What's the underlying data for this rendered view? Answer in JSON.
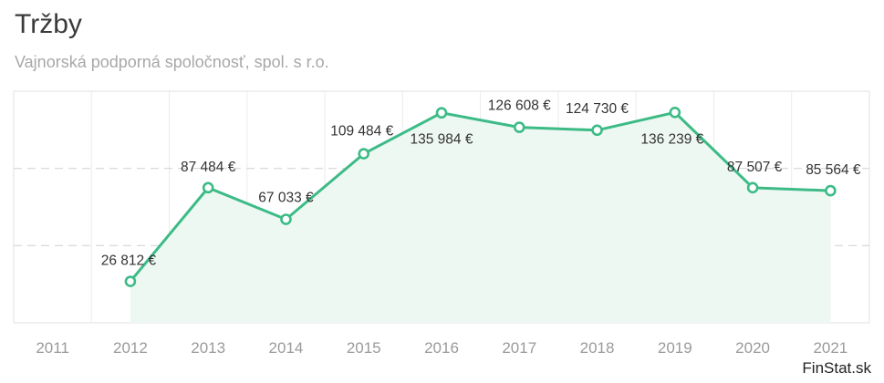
{
  "header": {
    "title": "Tržby",
    "subtitle": "Vajnorská podporná spoločnosť, spol. s r.o."
  },
  "brand": "FinStat.sk",
  "colors": {
    "line": "#3dbb86",
    "area": "#edf8f3",
    "grid": "#d6d6d6",
    "axis_text": "#9a9a9a",
    "label_text": "#333333"
  },
  "chart_data": {
    "type": "line",
    "title": "Tržby",
    "categories": [
      "2011",
      "2012",
      "2013",
      "2014",
      "2015",
      "2016",
      "2017",
      "2018",
      "2019",
      "2020",
      "2021"
    ],
    "series": [
      {
        "values": [
          null,
          26812,
          87484,
          67033,
          109484,
          135984,
          126608,
          124730,
          136239,
          87507,
          85564
        ],
        "labels": [
          "",
          "26 812 €",
          "87 484 €",
          "67 033 €",
          "109 484 €",
          "135 984 €",
          "126 608 €",
          "124 730 €",
          "136 239 €",
          "87 507 €",
          "85 564 €"
        ]
      }
    ],
    "ylim": [
      0,
      150000
    ],
    "grid": true,
    "marker": "hollow-circle",
    "area_fill": true
  }
}
